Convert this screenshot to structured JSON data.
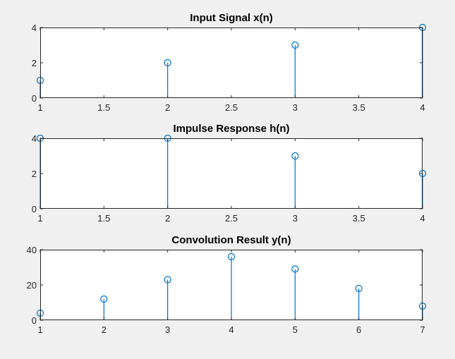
{
  "figure": {
    "background": "#f0f0f0",
    "axes_background": "#ffffff",
    "axes_color": "#262626",
    "stem_color": "#0072bd"
  },
  "chart_data": [
    {
      "type": "stem",
      "title": "Input Signal x(n)",
      "xlabel": "",
      "ylabel": "",
      "x": [
        1,
        2,
        3,
        4
      ],
      "y": [
        1,
        2,
        3,
        4
      ],
      "xlim": [
        1,
        4
      ],
      "ylim": [
        0,
        4
      ],
      "xticks": [
        1,
        1.5,
        2,
        2.5,
        3,
        3.5,
        4
      ],
      "xtick_labels": [
        "1",
        "1.5",
        "2",
        "2.5",
        "3",
        "3.5",
        "4"
      ],
      "yticks": [
        0,
        2,
        4
      ],
      "ytick_labels": [
        "0",
        "2",
        "4"
      ],
      "grid": false,
      "legend": "none"
    },
    {
      "type": "stem",
      "title": "Impulse Response h(n)",
      "xlabel": "",
      "ylabel": "",
      "x": [
        1,
        2,
        3,
        4
      ],
      "y": [
        4,
        4,
        3,
        2
      ],
      "xlim": [
        1,
        4
      ],
      "ylim": [
        0,
        4
      ],
      "xticks": [
        1,
        1.5,
        2,
        2.5,
        3,
        3.5,
        4
      ],
      "xtick_labels": [
        "1",
        "1.5",
        "2",
        "2.5",
        "3",
        "3.5",
        "4"
      ],
      "yticks": [
        0,
        2,
        4
      ],
      "ytick_labels": [
        "0",
        "2",
        "4"
      ],
      "grid": false,
      "legend": "none"
    },
    {
      "type": "stem",
      "title": "Convolution Result y(n)",
      "xlabel": "",
      "ylabel": "",
      "x": [
        1,
        2,
        3,
        4,
        5,
        6,
        7
      ],
      "y": [
        4,
        12,
        23,
        36,
        29,
        18,
        8
      ],
      "xlim": [
        1,
        7
      ],
      "ylim": [
        0,
        40
      ],
      "xticks": [
        1,
        2,
        3,
        4,
        5,
        6,
        7
      ],
      "xtick_labels": [
        "1",
        "2",
        "3",
        "4",
        "5",
        "6",
        "7"
      ],
      "yticks": [
        0,
        20,
        40
      ],
      "ytick_labels": [
        "0",
        "20",
        "40"
      ],
      "grid": false,
      "legend": "none"
    }
  ]
}
